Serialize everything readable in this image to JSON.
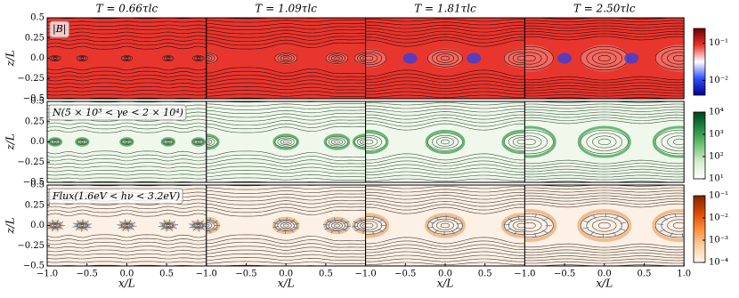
{
  "chart_data": {
    "type": "heatmap",
    "columns": [
      "T = 0.66τlc",
      "T = 1.09τlc",
      "T = 1.81τlc",
      "T = 2.50τlc"
    ],
    "xlabel": "x/L",
    "ylabel": "z/L",
    "xlim": [
      -1,
      1
    ],
    "xticks": [
      {
        "value": -1,
        "label": "−1.0"
      },
      {
        "value": -0.5,
        "label": "−0.5"
      },
      {
        "value": 0,
        "label": "0.0"
      },
      {
        "value": 0.5,
        "label": "0.5"
      },
      {
        "value": 1,
        "label": "1.0"
      }
    ],
    "ylim": [
      -0.5,
      0.5
    ],
    "yticks": [
      {
        "value": -0.5,
        "label": "−0.5"
      },
      {
        "value": -0.25,
        "label": "−0.25"
      },
      {
        "value": 0,
        "label": "0.0"
      },
      0.25,
      0.5
    ],
    "rows": [
      {
        "label": "|B|",
        "log": true,
        "colormap": [
          "#00008b",
          "#3050ff",
          "#ffffff",
          "#e8332b",
          "#6b0000"
        ],
        "clim": [
          0.004,
          0.25
        ],
        "cticks": [
          {
            "value": 0.1,
            "label": "10⁻¹"
          },
          {
            "value": 0.01,
            "label": "10⁻²"
          }
        ]
      },
      {
        "label": "N(5 × 10³ < γe < 2 × 10⁴)",
        "log": true,
        "colormap": [
          "#ffffff",
          "#d7eed0",
          "#74c476",
          "#238b45",
          "#00441b"
        ],
        "clim": [
          10,
          10000
        ],
        "cticks": [
          {
            "value": 10,
            "label": "10¹"
          },
          {
            "value": 100,
            "label": "10²"
          },
          {
            "value": 1000,
            "label": "10³"
          },
          {
            "value": 10000,
            "label": "10⁴"
          }
        ]
      },
      {
        "label": "Flux(1.6eV < hν < 3.2eV)",
        "log": true,
        "colormap": [
          "#fff5eb",
          "#fdd0a2",
          "#fd8d3c",
          "#d94801",
          "#7f2704"
        ],
        "clim": [
          0.0001,
          0.1
        ],
        "cticks": [
          {
            "value": 0.0001,
            "label": "10⁻⁴"
          },
          {
            "value": 0.001,
            "label": "10⁻³"
          },
          {
            "value": 0.01,
            "label": "10⁻²"
          },
          {
            "value": 0.1,
            "label": "10⁻¹"
          }
        ]
      }
    ]
  }
}
